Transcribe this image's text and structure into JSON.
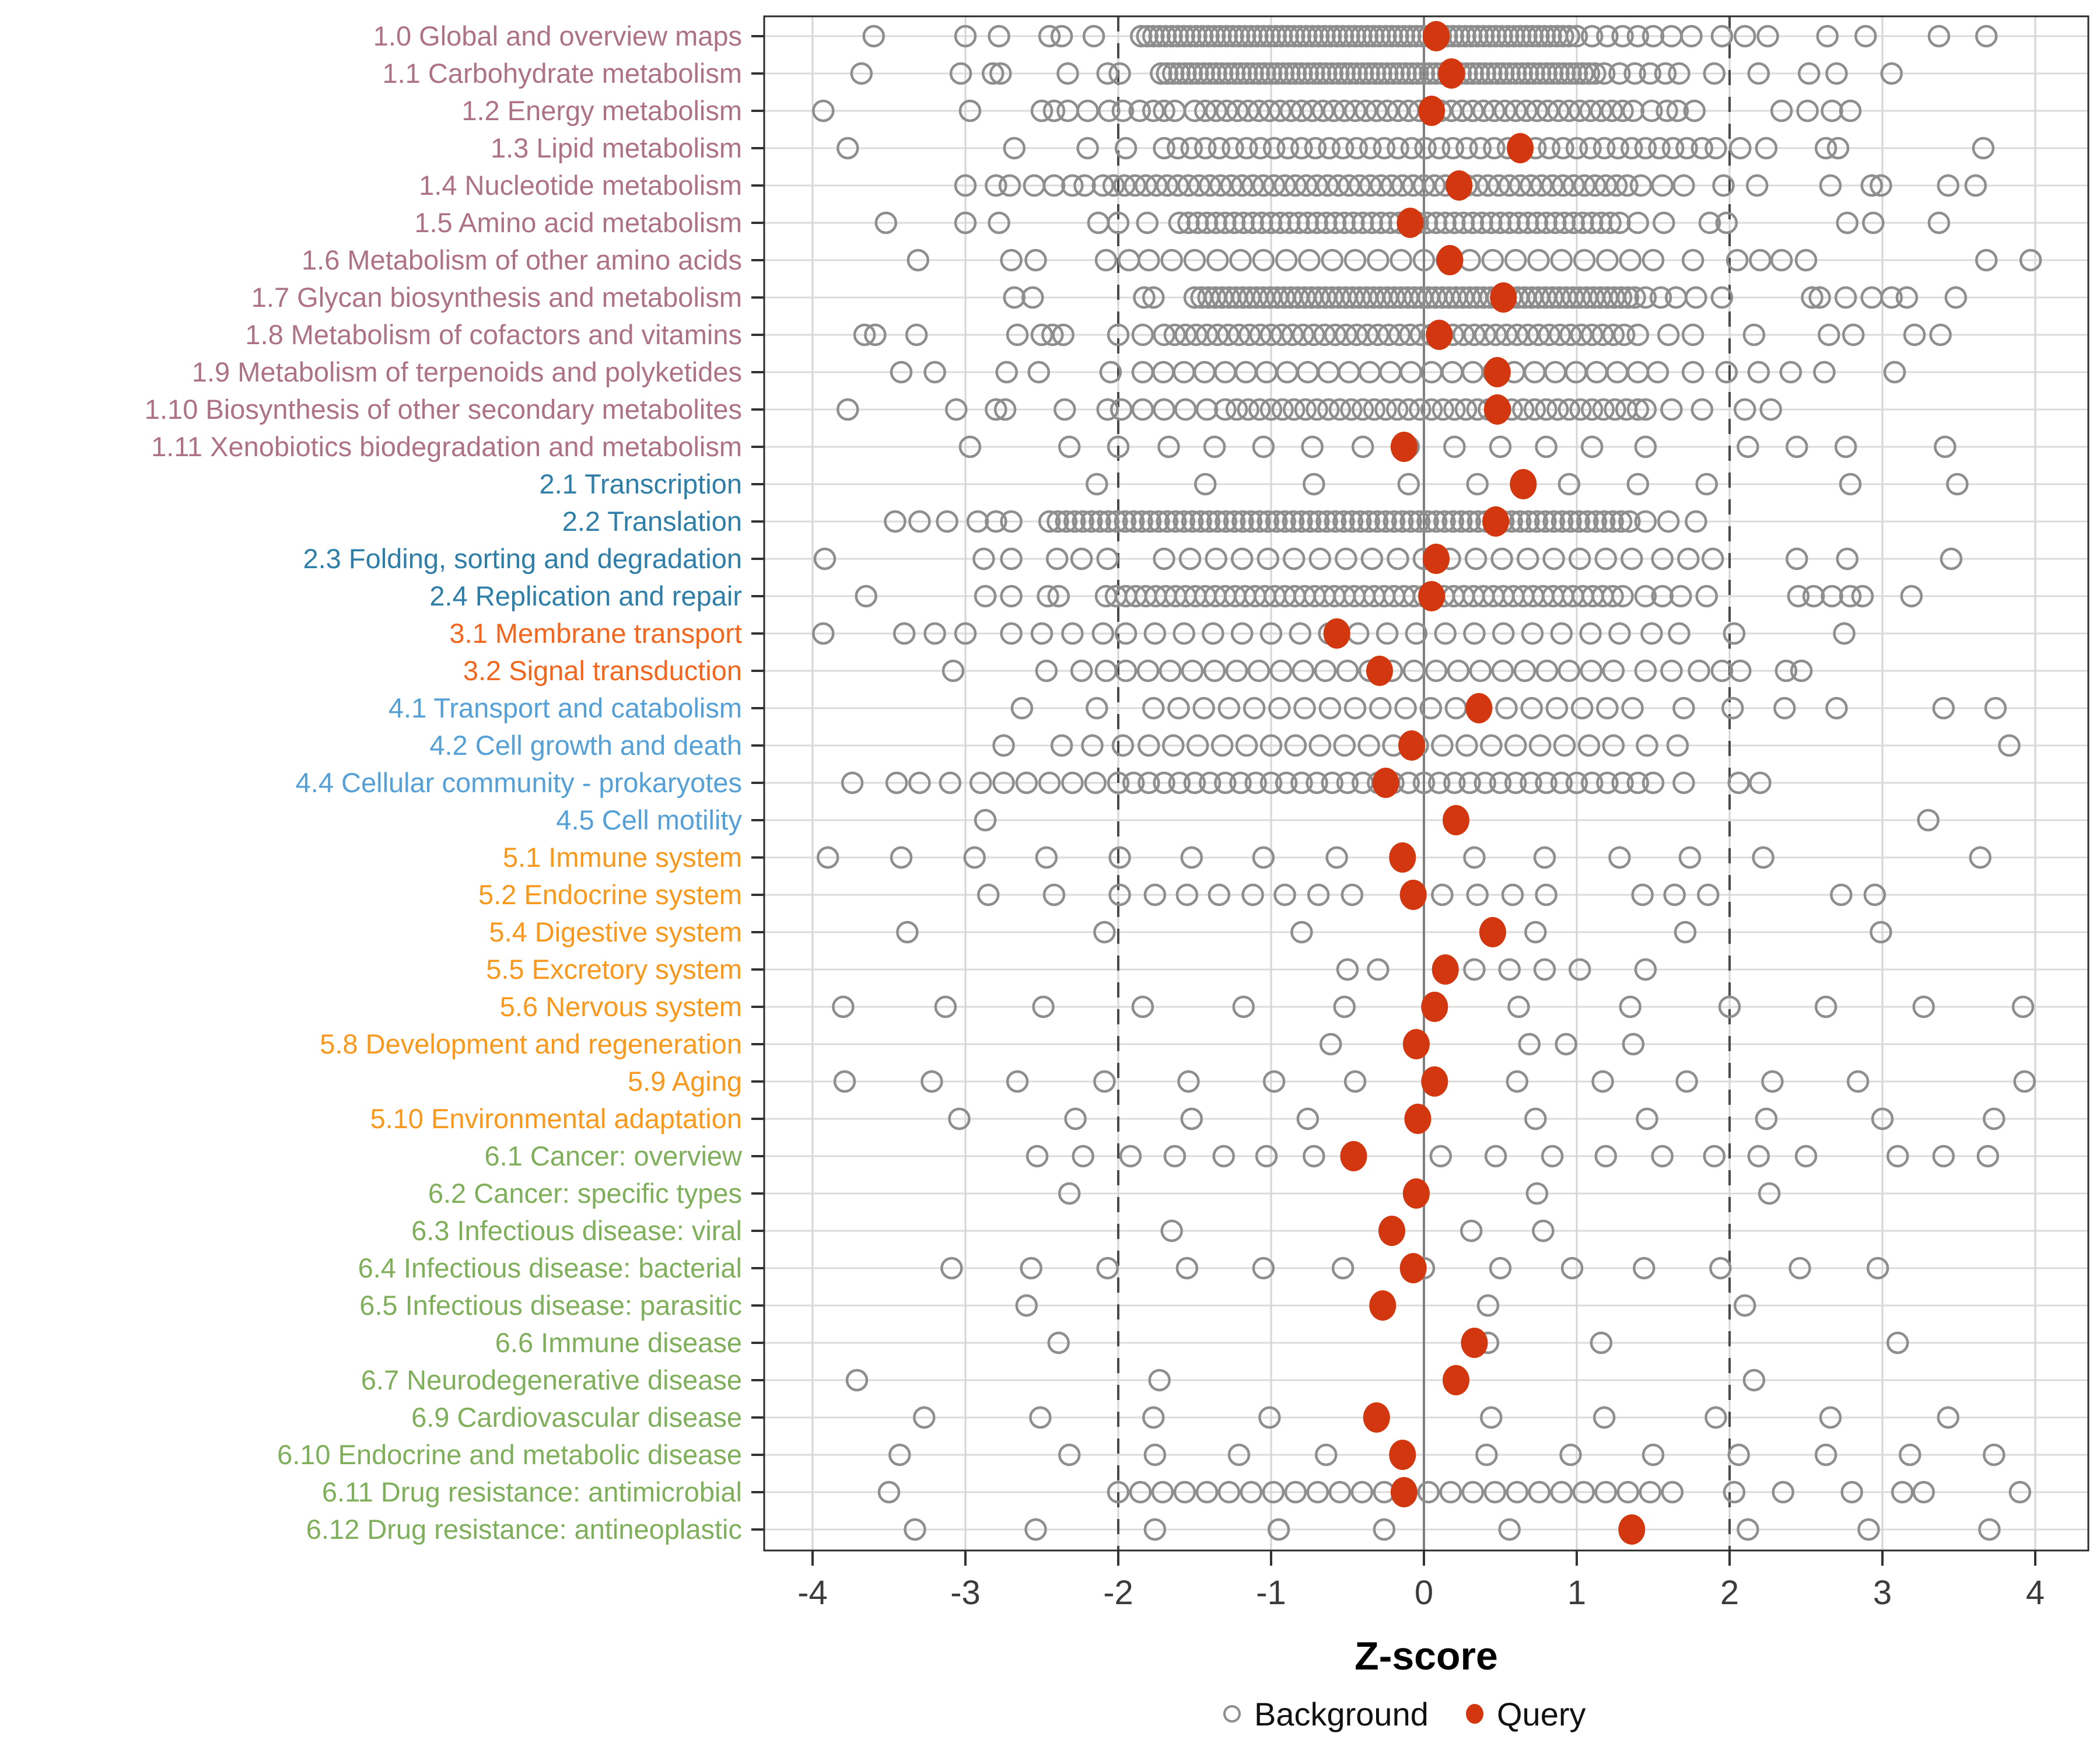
{
  "chart_data": {
    "type": "scatter",
    "title": "",
    "xlabel": "Z-score",
    "xlim": [
      -4.33,
      4.35
    ],
    "x_ticks": [
      -4,
      -3,
      -2,
      -1,
      0,
      1,
      2,
      3,
      4
    ],
    "reference_lines": {
      "solid_at": 0,
      "dashed_at": [
        -2,
        2
      ]
    },
    "grid": "on",
    "legend_position": "bottom-center",
    "legend": {
      "background_label": "Background",
      "query_label": "Query"
    },
    "colors": {
      "background_marker": "#8E8E8E",
      "query_marker": "#D2370F",
      "row_gridline": "#DBDBDB",
      "v_gridline": "#D6D6D6",
      "zero_line": "#7E7E7E",
      "dashed_line": "#4A4A4A",
      "panel_border": "#2B2B2B",
      "tick_text": "#3C3C3C",
      "group_metabolism": "#AE7285",
      "group_genetic": "#2E7EA8",
      "group_environmental": "#F2661D",
      "group_cellular": "#55A0D6",
      "group_organismal": "#F8981D",
      "group_disease": "#7FAF5B"
    },
    "rows": [
      {
        "label": "1.0 Global and overview maps",
        "group": "metabolism",
        "query": 0.08,
        "bg_chains": [
          [
            -1.85,
            0.95,
            0.04
          ],
          [
            1.0,
            1.5,
            0.1
          ]
        ],
        "bg_points": [
          -3.6,
          -3.0,
          -2.78,
          -2.45,
          -2.37,
          -2.16,
          1.62,
          1.75,
          1.95,
          2.1,
          2.25,
          2.64,
          2.89,
          3.37,
          3.68
        ]
      },
      {
        "label": "1.1 Carbohydrate metabolism",
        "group": "metabolism",
        "query": 0.18,
        "bg_chains": [
          [
            -1.72,
            1.12,
            0.04
          ],
          [
            1.18,
            1.6,
            0.1
          ]
        ],
        "bg_points": [
          -3.68,
          -3.03,
          -2.82,
          -2.77,
          -2.33,
          -2.07,
          -1.99,
          1.67,
          1.9,
          2.19,
          2.52,
          2.7,
          3.06
        ]
      },
      {
        "label": "1.2 Energy metabolism",
        "group": "metabolism",
        "query": 0.05,
        "bg_chains": [
          [
            -1.5,
            1.4,
            0.07
          ]
        ],
        "bg_points": [
          -3.93,
          -2.97,
          -2.5,
          -2.42,
          -2.33,
          -2.2,
          -2.06,
          -1.97,
          -1.86,
          -1.77,
          -1.7,
          -1.63,
          1.49,
          1.59,
          1.66,
          1.77,
          2.34,
          2.51,
          2.67,
          2.79
        ]
      },
      {
        "label": "1.3 Lipid metabolism",
        "group": "metabolism",
        "query": 0.63,
        "bg_chains": [
          [
            -1.7,
            1.75,
            0.09
          ]
        ],
        "bg_points": [
          -3.77,
          -2.68,
          -2.2,
          -1.95,
          1.82,
          1.91,
          2.07,
          2.24,
          2.63,
          2.71,
          3.66
        ]
      },
      {
        "label": "1.4 Nucleotide metabolism",
        "group": "metabolism",
        "query": 0.23,
        "bg_chains": [
          [
            -2.1,
            1.35,
            0.07
          ]
        ],
        "bg_points": [
          -3.0,
          -2.8,
          -2.71,
          -2.55,
          -2.42,
          -2.3,
          -2.22,
          1.42,
          1.56,
          1.7,
          1.96,
          2.18,
          2.66,
          2.93,
          2.99,
          3.43,
          3.61
        ]
      },
      {
        "label": "1.5 Amino acid metabolism",
        "group": "metabolism",
        "query": -0.09,
        "bg_chains": [
          [
            -1.6,
            1.3,
            0.06
          ]
        ],
        "bg_points": [
          -3.52,
          -3.0,
          -2.78,
          -2.13,
          -2.0,
          -1.81,
          1.4,
          1.57,
          1.87,
          1.98,
          2.77,
          2.94,
          3.37
        ]
      },
      {
        "label": "1.6 Metabolism of other amino acids",
        "group": "metabolism",
        "query": 0.17,
        "bg_chains": [
          [
            -1.8,
            1.6,
            0.15
          ]
        ],
        "bg_points": [
          -3.31,
          -2.7,
          -2.54,
          -2.08,
          -1.93,
          1.76,
          2.05,
          2.2,
          2.34,
          2.5,
          3.68,
          3.97
        ]
      },
      {
        "label": "1.7 Glycan biosynthesis and metabolism",
        "group": "metabolism",
        "query": 0.52,
        "bg_chains": [
          [
            -1.5,
            1.4,
            0.045
          ]
        ],
        "bg_points": [
          -2.68,
          -2.56,
          -1.83,
          -1.77,
          1.45,
          1.55,
          1.65,
          1.78,
          1.95,
          2.54,
          2.59,
          2.76,
          2.93,
          3.06,
          3.16,
          3.48
        ]
      },
      {
        "label": "1.8 Metabolism of cofactors and vitamins",
        "group": "metabolism",
        "query": 0.1,
        "bg_chains": [
          [
            -1.7,
            1.35,
            0.07
          ]
        ],
        "bg_points": [
          -3.66,
          -3.59,
          -3.32,
          -2.66,
          -2.5,
          -2.43,
          -2.36,
          -2.0,
          -1.84,
          1.4,
          1.6,
          1.76,
          2.16,
          2.65,
          2.81,
          3.21,
          3.38
        ]
      },
      {
        "label": "1.9 Metabolism of terpenoids and polyketides",
        "group": "metabolism",
        "query": 0.48,
        "bg_chains": [
          [
            -1.84,
            1.4,
            0.135
          ]
        ],
        "bg_points": [
          -3.42,
          -3.2,
          -2.73,
          -2.52,
          -2.05,
          1.53,
          1.76,
          1.98,
          2.19,
          2.4,
          2.62,
          3.08
        ]
      },
      {
        "label": "1.10 Biosynthesis of other secondary metabolites",
        "group": "metabolism",
        "query": 0.48,
        "bg_chains": [
          [
            -1.98,
            -1.42,
            0.14
          ],
          [
            -1.3,
            1.4,
            0.075
          ]
        ],
        "bg_points": [
          -3.77,
          -3.06,
          -2.8,
          -2.74,
          -2.35,
          -2.07,
          1.45,
          1.62,
          1.82,
          2.1,
          2.27
        ]
      },
      {
        "label": "1.11 Xenobiotics biodegradation and metabolism",
        "group": "metabolism",
        "query": -0.13,
        "bg_chains": [],
        "bg_points": [
          -2.97,
          -2.32,
          -2.0,
          -1.67,
          -1.37,
          -1.05,
          -0.73,
          -0.4,
          -0.1,
          0.2,
          0.5,
          0.8,
          1.1,
          1.45,
          2.12,
          2.44,
          2.76,
          3.41
        ]
      },
      {
        "label": "2.1 Transcription",
        "group": "genetic",
        "query": 0.65,
        "bg_chains": [],
        "bg_points": [
          -2.14,
          -1.43,
          -0.72,
          -0.1,
          0.35,
          0.95,
          1.4,
          1.85,
          2.79,
          3.49
        ]
      },
      {
        "label": "2.2 Translation",
        "group": "genetic",
        "query": 0.47,
        "bg_chains": [
          [
            -2.45,
            1.35,
            0.055
          ]
        ],
        "bg_points": [
          -3.46,
          -3.3,
          -3.12,
          -2.92,
          -2.8,
          -2.7,
          1.45,
          1.6,
          1.78
        ]
      },
      {
        "label": "2.3 Folding, sorting and degradation",
        "group": "genetic",
        "query": 0.08,
        "bg_chains": [
          [
            -1.7,
            1.4,
            0.17
          ]
        ],
        "bg_points": [
          -3.92,
          -2.88,
          -2.7,
          -2.4,
          -2.24,
          -2.07,
          1.56,
          1.73,
          1.89,
          2.44,
          2.77,
          3.45
        ]
      },
      {
        "label": "2.4 Replication and repair",
        "group": "genetic",
        "query": 0.05,
        "bg_chains": [
          [
            -2.08,
            1.35,
            0.065
          ]
        ],
        "bg_points": [
          -3.65,
          -2.87,
          -2.7,
          -2.46,
          -2.39,
          1.45,
          1.56,
          1.68,
          1.85,
          2.45,
          2.55,
          2.67,
          2.79,
          2.87,
          3.19
        ]
      },
      {
        "label": "3.1 Membrane transport",
        "group": "environmental",
        "query": -0.57,
        "bg_chains": [
          [
            -1.95,
            1.35,
            0.19
          ]
        ],
        "bg_points": [
          -3.93,
          -3.4,
          -3.2,
          -3.0,
          -2.7,
          -2.5,
          -2.3,
          -2.1,
          1.49,
          1.67,
          2.03,
          2.75
        ]
      },
      {
        "label": "3.2 Signal transduction",
        "group": "environmental",
        "query": -0.29,
        "bg_chains": [
          [
            -1.95,
            1.35,
            0.145
          ]
        ],
        "bg_points": [
          -3.08,
          -2.47,
          -2.24,
          -2.08,
          1.45,
          1.62,
          1.8,
          1.95,
          2.07,
          2.37,
          2.47
        ]
      },
      {
        "label": "4.1 Transport and catabolism",
        "group": "cellular",
        "query": 0.36,
        "bg_chains": [
          [
            -1.77,
            1.5,
            0.165
          ]
        ],
        "bg_points": [
          -2.63,
          -2.14,
          1.7,
          2.02,
          2.36,
          2.7,
          3.4,
          3.74
        ]
      },
      {
        "label": "4.2 Cell growth and death",
        "group": "cellular",
        "query": -0.08,
        "bg_chains": [
          [
            -1.8,
            1.3,
            0.16
          ]
        ],
        "bg_points": [
          -2.75,
          -2.37,
          -2.17,
          -1.97,
          1.46,
          1.66,
          3.83
        ]
      },
      {
        "label": "4.4 Cellular community - prokaryotes",
        "group": "cellular",
        "query": -0.25,
        "bg_chains": [
          [
            -2.0,
            1.4,
            0.1
          ]
        ],
        "bg_points": [
          -3.74,
          -3.45,
          -3.3,
          -3.1,
          -2.9,
          -2.75,
          -2.6,
          -2.45,
          -2.3,
          -2.15,
          1.5,
          1.7,
          2.06,
          2.2
        ]
      },
      {
        "label": "4.5 Cell motility",
        "group": "cellular",
        "query": 0.21,
        "bg_chains": [],
        "bg_points": [
          -2.87,
          3.3
        ]
      },
      {
        "label": "5.1 Immune system",
        "group": "organismal",
        "query": -0.14,
        "bg_chains": [],
        "bg_points": [
          -3.9,
          -3.42,
          -2.94,
          -2.47,
          -1.99,
          -1.52,
          -1.05,
          -0.57,
          0.33,
          0.79,
          1.28,
          1.74,
          2.22,
          3.64
        ]
      },
      {
        "label": "5.2 Endocrine system",
        "group": "organismal",
        "query": -0.07,
        "bg_chains": [],
        "bg_points": [
          -2.85,
          -2.42,
          -1.99,
          -1.76,
          -1.55,
          -1.34,
          -1.12,
          -0.91,
          -0.69,
          -0.47,
          0.12,
          0.35,
          0.58,
          0.8,
          1.43,
          1.64,
          1.86,
          2.73,
          2.95
        ]
      },
      {
        "label": "5.4 Digestive system",
        "group": "organismal",
        "query": 0.45,
        "bg_chains": [],
        "bg_points": [
          -3.38,
          -2.09,
          -0.8,
          0.73,
          1.71,
          2.99
        ]
      },
      {
        "label": "5.5 Excretory system",
        "group": "organismal",
        "query": 0.14,
        "bg_chains": [],
        "bg_points": [
          -0.5,
          -0.3,
          0.33,
          0.56,
          0.79,
          1.02,
          1.45
        ]
      },
      {
        "label": "5.6 Nervous system",
        "group": "organismal",
        "query": 0.07,
        "bg_chains": [],
        "bg_points": [
          -3.8,
          -3.13,
          -2.49,
          -1.84,
          -1.18,
          -0.52,
          0.62,
          1.35,
          2.0,
          2.63,
          3.27,
          3.92
        ]
      },
      {
        "label": "5.8 Development and regeneration",
        "group": "organismal",
        "query": -0.05,
        "bg_chains": [],
        "bg_points": [
          -0.61,
          0.69,
          0.93,
          1.37
        ]
      },
      {
        "label": "5.9 Aging",
        "group": "organismal",
        "query": 0.07,
        "bg_chains": [],
        "bg_points": [
          -3.79,
          -3.22,
          -2.66,
          -2.09,
          -1.54,
          -0.98,
          -0.45,
          0.61,
          1.17,
          1.72,
          2.28,
          2.84,
          3.93
        ]
      },
      {
        "label": "5.10 Environmental adaptation",
        "group": "organismal",
        "query": -0.04,
        "bg_chains": [],
        "bg_points": [
          -3.04,
          -2.28,
          -1.52,
          -0.76,
          0.73,
          1.46,
          2.24,
          3.0,
          3.73
        ]
      },
      {
        "label": "6.1 Cancer: overview",
        "group": "disease",
        "query": -0.46,
        "bg_chains": [],
        "bg_points": [
          -2.53,
          -2.23,
          -1.92,
          -1.63,
          -1.31,
          -1.03,
          -0.72,
          0.11,
          0.47,
          0.84,
          1.19,
          1.56,
          1.9,
          2.19,
          2.5,
          3.1,
          3.4,
          3.69
        ]
      },
      {
        "label": "6.2 Cancer: specific types",
        "group": "disease",
        "query": -0.05,
        "bg_chains": [],
        "bg_points": [
          -2.32,
          0.74,
          2.26
        ]
      },
      {
        "label": "6.3 Infectious disease: viral",
        "group": "disease",
        "query": -0.21,
        "bg_chains": [],
        "bg_points": [
          -1.65,
          0.31,
          0.78
        ]
      },
      {
        "label": "6.4 Infectious disease: bacterial",
        "group": "disease",
        "query": -0.07,
        "bg_chains": [],
        "bg_points": [
          -3.09,
          -2.57,
          -2.07,
          -1.55,
          -1.05,
          -0.53,
          0.0,
          0.5,
          0.97,
          1.44,
          1.94,
          2.46,
          2.97
        ]
      },
      {
        "label": "6.5 Infectious disease: parasitic",
        "group": "disease",
        "query": -0.27,
        "bg_chains": [],
        "bg_points": [
          -2.6,
          0.42,
          2.1
        ]
      },
      {
        "label": "6.6 Immune disease",
        "group": "disease",
        "query": 0.33,
        "bg_chains": [],
        "bg_points": [
          -2.39,
          0.42,
          1.16,
          3.1
        ]
      },
      {
        "label": "6.7 Neurodegenerative disease",
        "group": "disease",
        "query": 0.21,
        "bg_chains": [],
        "bg_points": [
          -3.71,
          -1.73,
          2.16
        ]
      },
      {
        "label": "6.9 Cardiovascular disease",
        "group": "disease",
        "query": -0.31,
        "bg_chains": [],
        "bg_points": [
          -3.27,
          -2.51,
          -1.77,
          -1.01,
          0.44,
          1.18,
          1.91,
          2.66,
          3.43
        ]
      },
      {
        "label": "6.10 Endocrine and metabolic disease",
        "group": "disease",
        "query": -0.14,
        "bg_chains": [],
        "bg_points": [
          -3.43,
          -2.32,
          -1.76,
          -1.21,
          -0.64,
          0.41,
          0.96,
          1.5,
          2.06,
          2.63,
          3.18,
          3.73
        ]
      },
      {
        "label": "6.11 Drug resistance: antimicrobial",
        "group": "disease",
        "query": -0.13,
        "bg_chains": [
          [
            -2.0,
            1.7,
            0.145
          ]
        ],
        "bg_points": [
          -3.5,
          2.03,
          2.35,
          2.8,
          3.13,
          3.27,
          3.9
        ]
      },
      {
        "label": "6.12 Drug resistance: antineoplastic",
        "group": "disease",
        "query": 1.36,
        "bg_chains": [],
        "bg_points": [
          -3.33,
          -2.54,
          -1.76,
          -0.95,
          -0.26,
          0.56,
          2.12,
          2.91,
          3.7
        ]
      }
    ]
  }
}
